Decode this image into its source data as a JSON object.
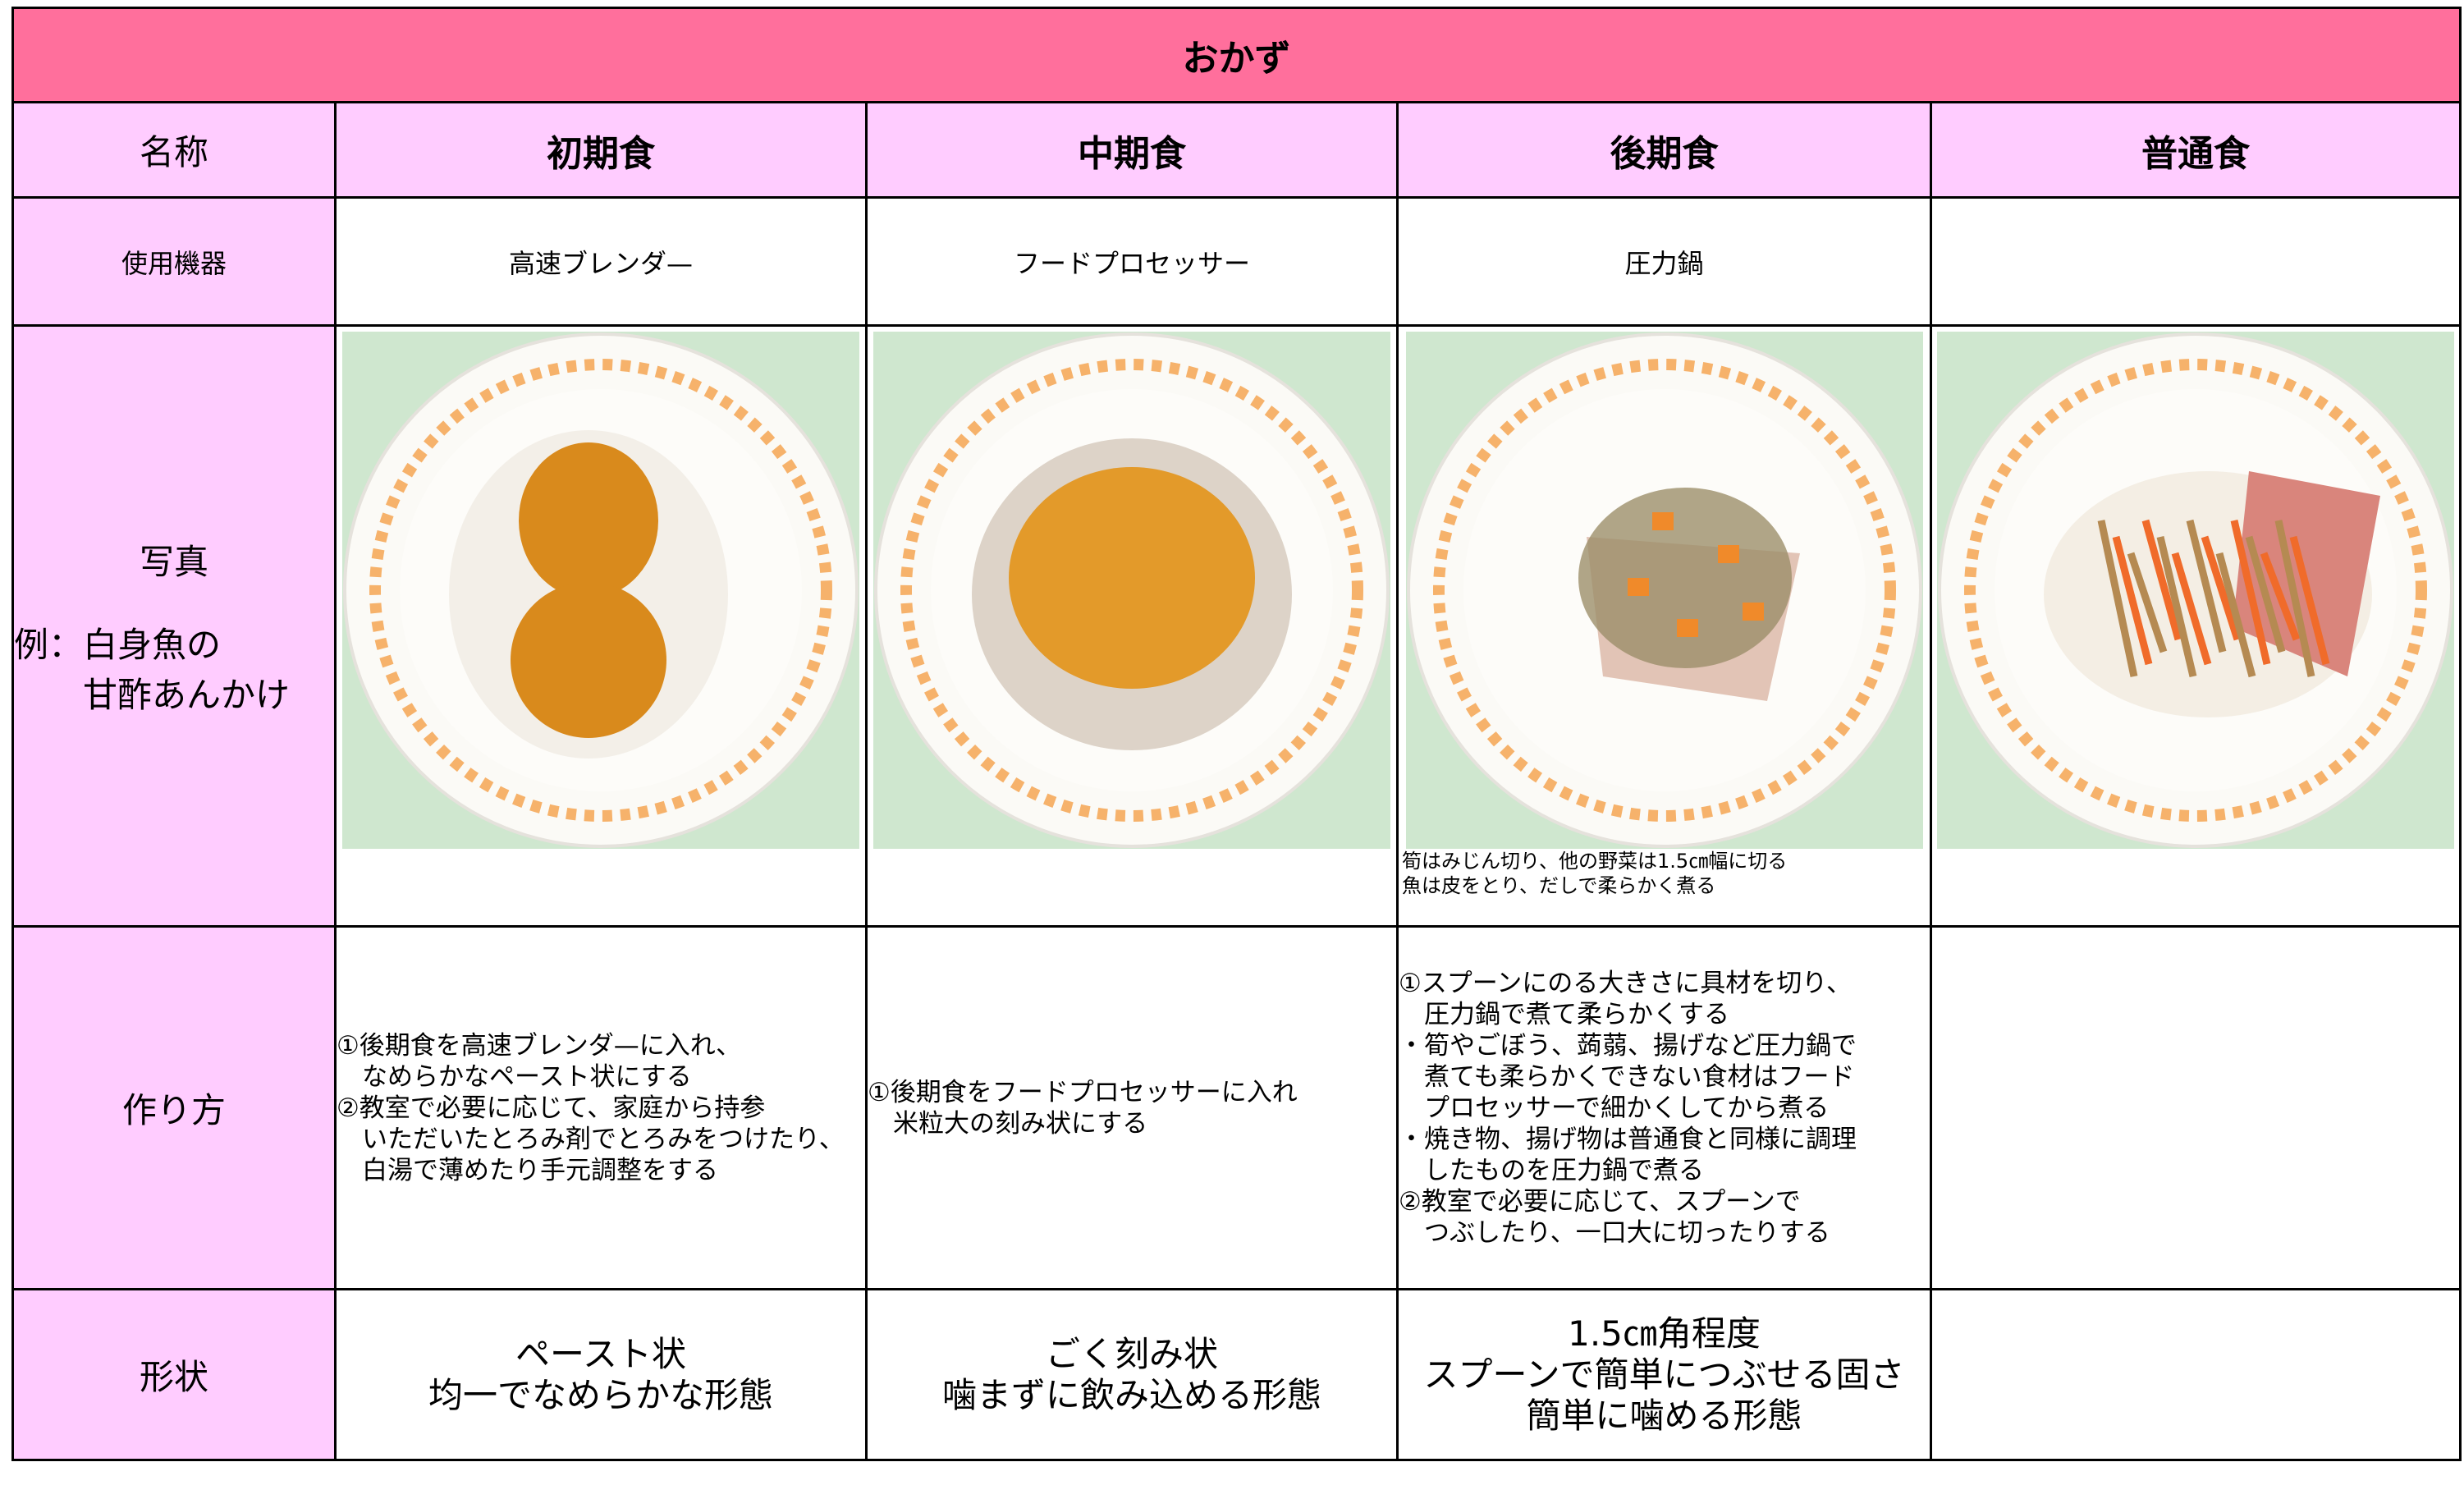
{
  "header": {
    "title": "おかず"
  },
  "table": {
    "columns": [
      "名称",
      "初期食",
      "中期食",
      "後期食",
      "普通食"
    ],
    "equipment": {
      "label": "使用機器",
      "cells": [
        "高速ブレンダ—",
        "フードプロセッサー",
        "圧力鍋"
      ]
    },
    "photo": {
      "label": "写真",
      "example": [
        "例：白身魚の",
        "　　甘酢あんかけ"
      ],
      "notes": [
        "筍はみじん切り、他の野菜は1.5㎝幅に切る",
        "魚は皮をとり、だしで柔らかく煮る"
      ]
    },
    "method": {
      "label": "作り方",
      "cells": [
        [
          "①後期食を高速ブレンダ—に入れ、",
          "　なめらかなペースト状にする",
          "②教室で必要に応じて、家庭から持参",
          "　いただいたとろみ剤でとろみをつけたり、",
          "　白湯で薄めたり手元調整をする"
        ],
        [
          "①後期食をフードプロセッサーに入れ",
          "　米粒大の刻み状にする"
        ],
        [
          "①スプーンにのる大きさに具材を切り、",
          "　圧力鍋で煮て柔らかくする",
          "・筍やごぼう、蒟蒻、揚げなど圧力鍋で",
          "　煮ても柔らかくできない食材はフード",
          "　プロセッサーで細かくしてから煮る",
          "・焼き物、揚げ物は普通食と同様に調理",
          "　したものを圧力鍋で煮る",
          "②教室で必要に応じて、スプーンで",
          "　つぶしたり、一口大に切ったりする"
        ]
      ]
    },
    "shape": {
      "label": "形状",
      "cells": [
        [
          "ペースト状",
          "均一でなめらかな形態"
        ],
        [
          "ごく刻み状",
          "噛まずに飲み込める形態"
        ],
        [
          "1.5㎝角程度",
          "スプーンで簡単につぶせる固さ",
          "簡単に噛める形態"
        ]
      ]
    }
  }
}
